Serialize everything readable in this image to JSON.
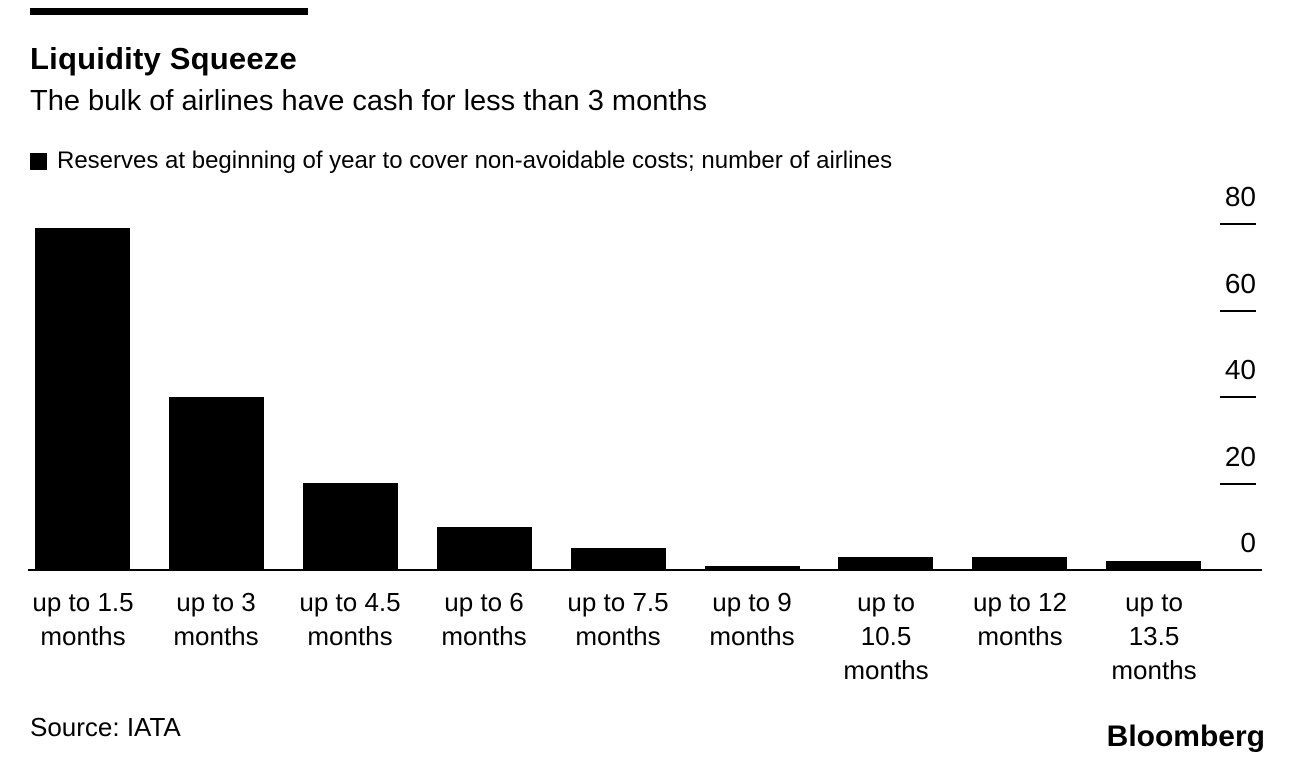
{
  "header": {
    "title": "Liquidity Squeeze",
    "subtitle": "The bulk of airlines have cash for less than 3 months"
  },
  "legend": {
    "marker_color": "#000000",
    "label": "Reserves at beginning of year to cover non-avoidable costs; number of airlines"
  },
  "chart_data": {
    "type": "bar",
    "title": "Liquidity Squeeze",
    "subtitle": "The bulk of airlines have cash for less than 3 months",
    "series_label": "Reserves at beginning of year to cover non-avoidable costs; number of airlines",
    "categories": [
      "up to 1.5 months",
      "up to 3 months",
      "up to 4.5 months",
      "up to 6 months",
      "up to 7.5 months",
      "up to 9 months",
      "up to 10.5 months",
      "up to 12 months",
      "up to 13.5 months"
    ],
    "category_label_lines": [
      [
        "up to 1.5",
        "months"
      ],
      [
        "up to 3",
        "months"
      ],
      [
        "up to 4.5",
        "months"
      ],
      [
        "up to 6",
        "months"
      ],
      [
        "up to 7.5",
        "months"
      ],
      [
        "up to 9",
        "months"
      ],
      [
        "up to",
        "10.5",
        "months"
      ],
      [
        "up to 12",
        "months"
      ],
      [
        "up to",
        "13.5",
        "months"
      ]
    ],
    "values": [
      79,
      40,
      20,
      10,
      5,
      1,
      3,
      3,
      2
    ],
    "bar_color": "#000000",
    "ylim": [
      0,
      80
    ],
    "yticks": [
      80,
      60,
      40,
      20,
      0
    ],
    "yaxis_side": "right",
    "grid": false,
    "xlabel": "",
    "ylabel": "number of airlines"
  },
  "footer": {
    "source": "Source: IATA",
    "brand": "Bloomberg"
  }
}
